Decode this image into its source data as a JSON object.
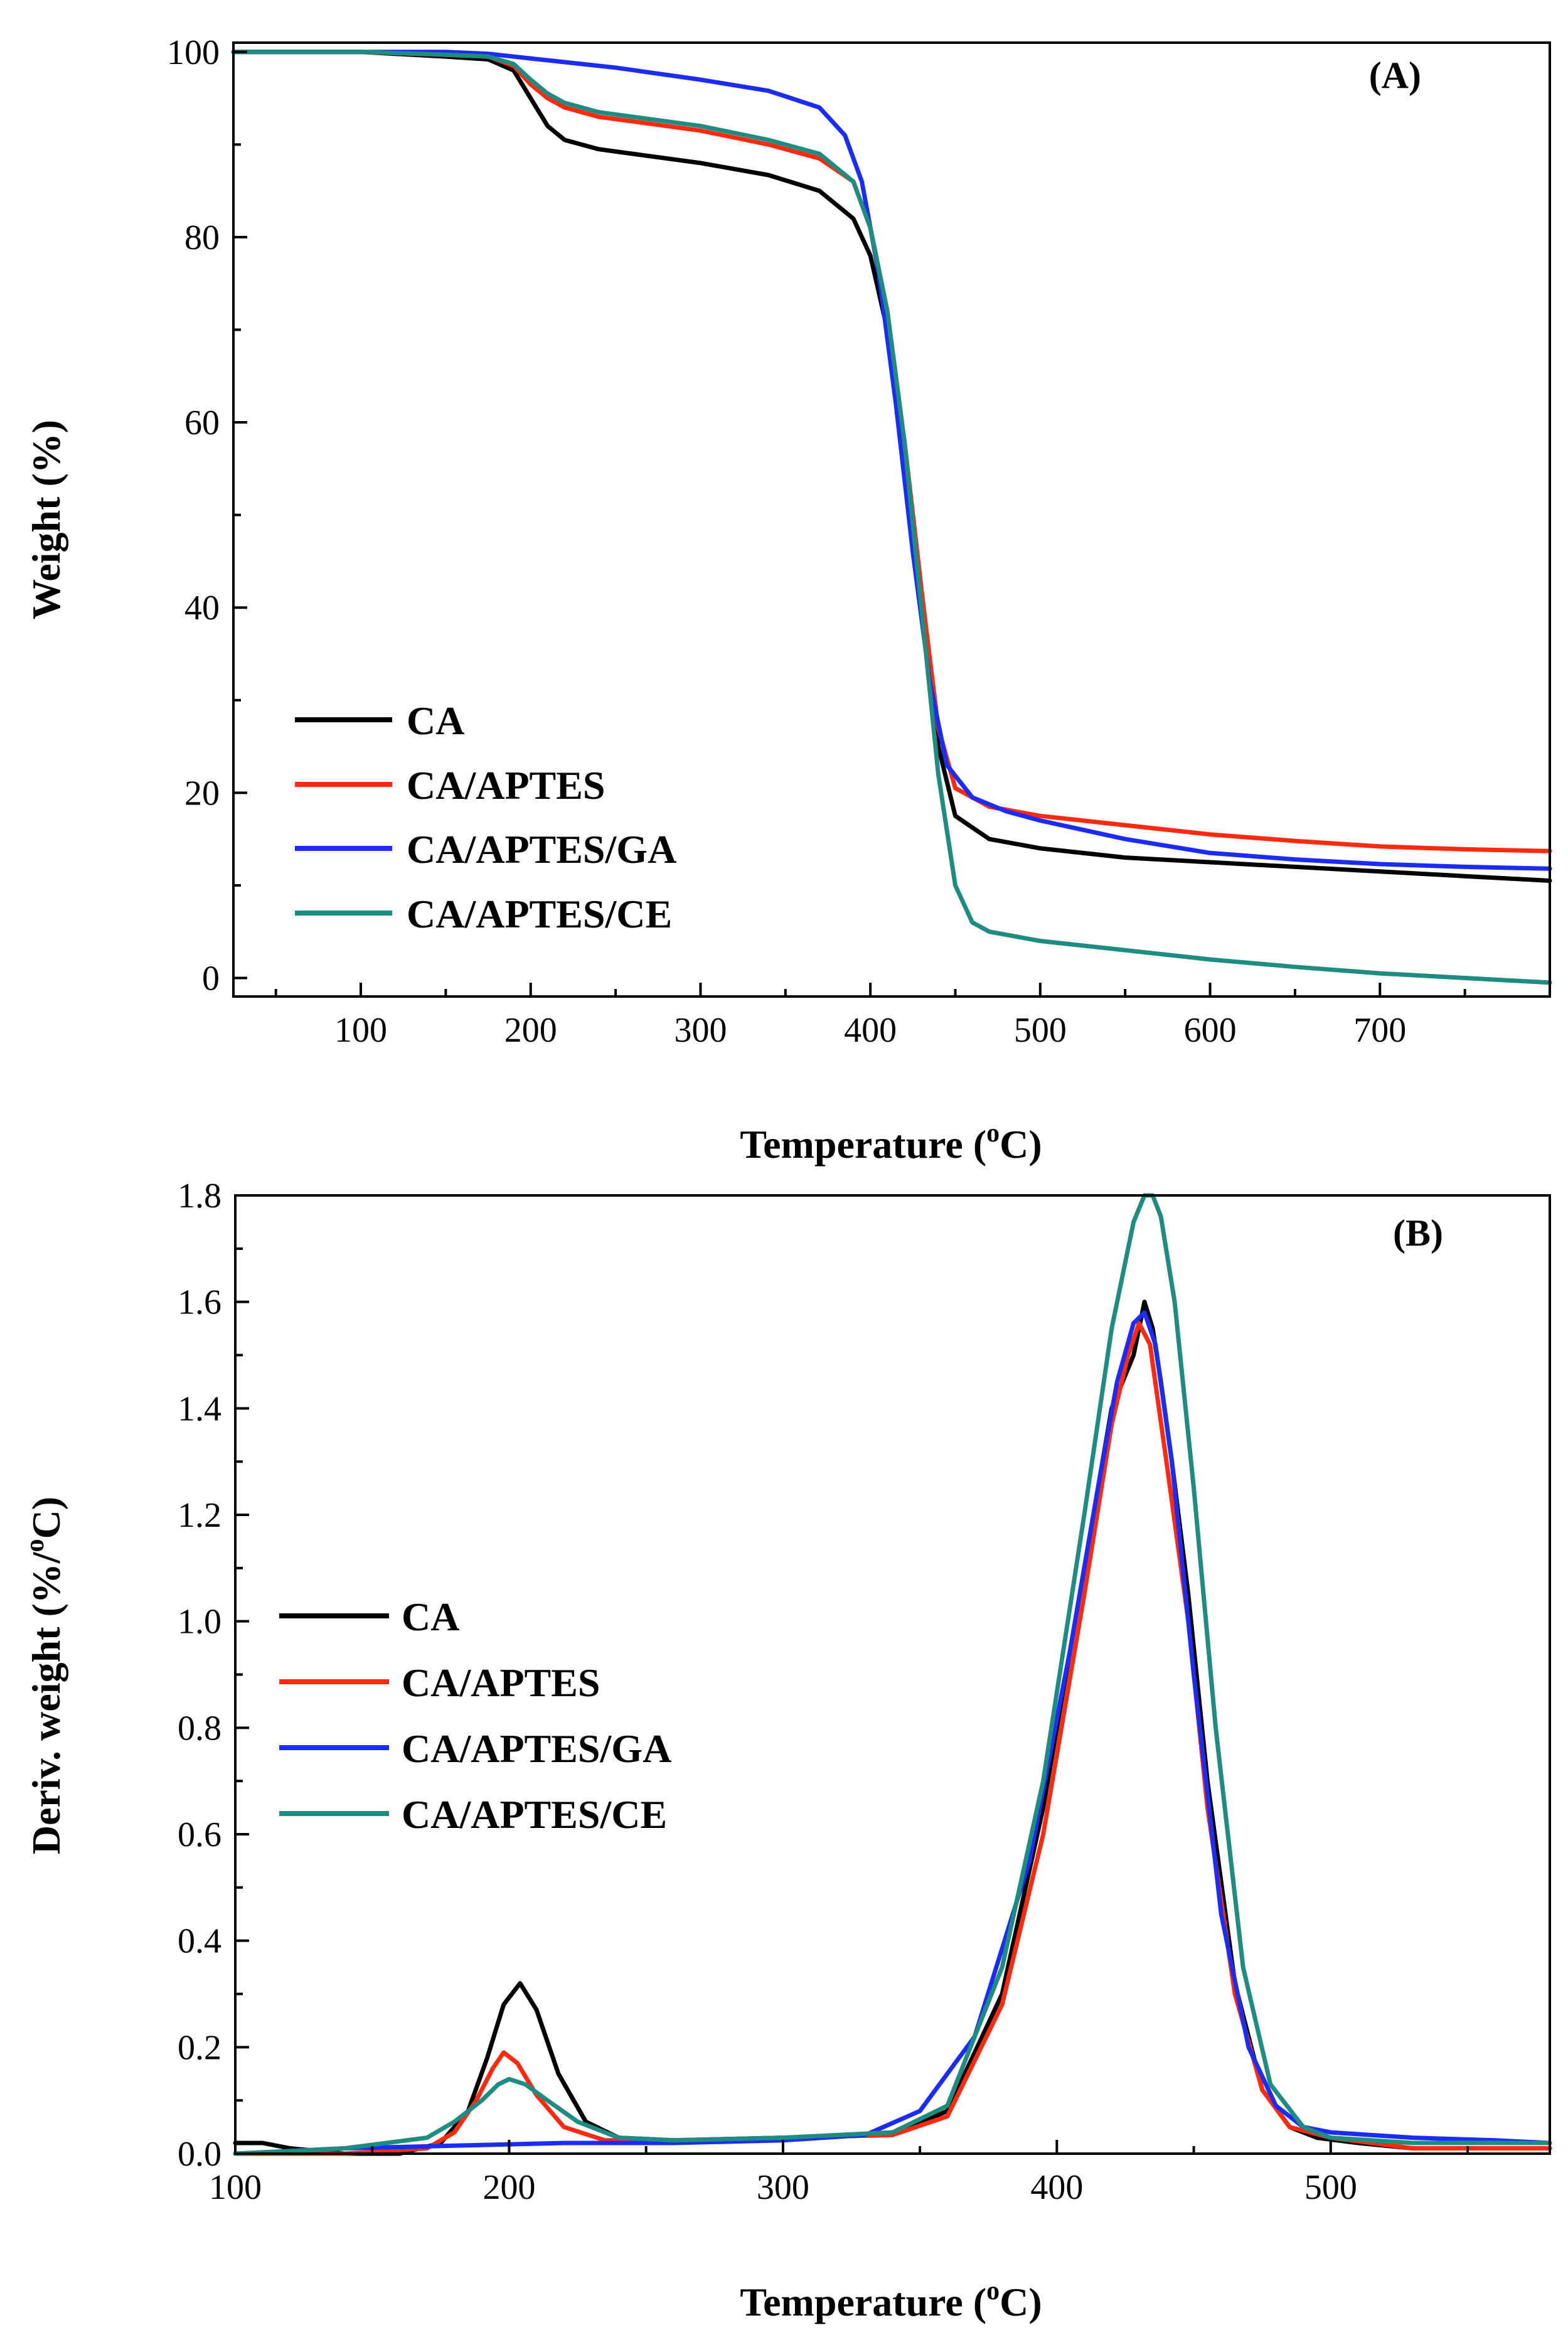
{
  "chart_data": [
    {
      "type": "line",
      "panel_label": "(A)",
      "title": "",
      "xlabel_main": "Temperature (",
      "xlabel_sup": "o",
      "xlabel_end": "C)",
      "ylabel": "Weight (%)",
      "xlim": [
        25,
        800
      ],
      "ylim": [
        -2,
        101
      ],
      "xticks": [
        100,
        200,
        300,
        400,
        500,
        600,
        700
      ],
      "yticks": [
        0,
        20,
        40,
        60,
        80,
        100
      ],
      "legend_position": "lower-left",
      "series": [
        {
          "name": "CA",
          "color": "#000000",
          "x": [
            25,
            100,
            150,
            175,
            190,
            200,
            210,
            220,
            240,
            260,
            300,
            340,
            370,
            390,
            400,
            410,
            420,
            430,
            440,
            450,
            470,
            500,
            550,
            600,
            650,
            700,
            750,
            800
          ],
          "y": [
            100,
            100,
            99.5,
            99.2,
            98,
            95,
            92,
            90.5,
            89.5,
            89,
            88,
            86.7,
            85,
            82,
            78,
            70,
            58,
            42,
            25,
            17.5,
            15,
            14,
            13,
            12.5,
            12,
            11.5,
            11,
            10.5
          ]
        },
        {
          "name": "CA/APTES",
          "color": "#ff2a0f",
          "x": [
            25,
            100,
            150,
            175,
            190,
            200,
            210,
            220,
            240,
            260,
            300,
            340,
            370,
            390,
            400,
            410,
            420,
            430,
            440,
            450,
            470,
            500,
            550,
            600,
            650,
            700,
            750,
            800
          ],
          "y": [
            100,
            100,
            99.7,
            99.5,
            98.5,
            96.5,
            95,
            94,
            93,
            92.5,
            91.5,
            90,
            88.5,
            86,
            81,
            72,
            58,
            42,
            27,
            20.5,
            18.5,
            17.5,
            16.5,
            15.5,
            14.8,
            14.2,
            13.9,
            13.7
          ]
        },
        {
          "name": "CA/APTES/GA",
          "color": "#1a2cf5",
          "x": [
            25,
            100,
            150,
            175,
            200,
            250,
            300,
            340,
            370,
            385,
            395,
            405,
            415,
            425,
            435,
            445,
            460,
            480,
            500,
            550,
            600,
            650,
            700,
            750,
            800
          ],
          "y": [
            100,
            100,
            100,
            99.8,
            99.3,
            98.3,
            97,
            95.8,
            94,
            91,
            86,
            76,
            62,
            46,
            32,
            23,
            19.5,
            18,
            17,
            15,
            13.5,
            12.8,
            12.3,
            12,
            11.8
          ]
        },
        {
          "name": "CA/APTES/CE",
          "color": "#1f8c82",
          "x": [
            25,
            100,
            150,
            175,
            190,
            200,
            210,
            220,
            240,
            260,
            300,
            340,
            370,
            390,
            400,
            410,
            420,
            430,
            440,
            450,
            460,
            470,
            500,
            550,
            600,
            650,
            700,
            750,
            800
          ],
          "y": [
            100,
            100,
            99.7,
            99.5,
            98.7,
            97,
            95.5,
            94.5,
            93.5,
            93,
            92,
            90.5,
            89,
            86,
            81,
            72,
            58,
            40,
            22,
            10,
            6,
            5,
            4,
            3,
            2,
            1.2,
            0.5,
            0,
            -0.5
          ]
        }
      ]
    },
    {
      "type": "line",
      "panel_label": "(B)",
      "title": "",
      "xlabel_main": "Temperature (",
      "xlabel_sup": "o",
      "xlabel_end": "C)",
      "ylabel_main": "Deriv. weight (%/",
      "ylabel_sup": "o",
      "ylabel_end": "C)",
      "xlim": [
        100,
        580
      ],
      "ylim": [
        0,
        1.8
      ],
      "xticks": [
        100,
        200,
        300,
        400,
        500
      ],
      "yticks": [
        0.0,
        0.2,
        0.4,
        0.6,
        0.8,
        1.0,
        1.2,
        1.4,
        1.6,
        1.8
      ],
      "ytick_labels": [
        "0.0",
        "0.2",
        "0.4",
        "0.6",
        "0.8",
        "1.0",
        "1.2",
        "1.4",
        "1.6",
        "1.8"
      ],
      "legend_position": "middle-left",
      "series": [
        {
          "name": "CA",
          "color": "#000000",
          "x": [
            100,
            110,
            120,
            140,
            160,
            175,
            185,
            192,
            198,
            204,
            210,
            218,
            228,
            240,
            260,
            300,
            340,
            360,
            380,
            395,
            410,
            420,
            428,
            432,
            435,
            438,
            442,
            448,
            455,
            465,
            475,
            485,
            495,
            510,
            530,
            560,
            580
          ],
          "y": [
            0.02,
            0.02,
            0.01,
            0.0,
            0.0,
            0.02,
            0.08,
            0.18,
            0.28,
            0.32,
            0.27,
            0.15,
            0.06,
            0.03,
            0.025,
            0.03,
            0.035,
            0.08,
            0.3,
            0.65,
            1.1,
            1.4,
            1.5,
            1.6,
            1.55,
            1.45,
            1.3,
            1.05,
            0.7,
            0.32,
            0.12,
            0.05,
            0.03,
            0.02,
            0.01,
            0.01,
            0.01
          ]
        },
        {
          "name": "CA/APTES",
          "color": "#ff2a0f",
          "x": [
            100,
            140,
            170,
            180,
            188,
            194,
            198,
            203,
            210,
            220,
            235,
            260,
            300,
            340,
            360,
            380,
            395,
            410,
            420,
            426,
            430,
            434,
            440,
            448,
            455,
            465,
            475,
            485,
            500,
            530,
            560,
            580
          ],
          "y": [
            0.0,
            0.0,
            0.01,
            0.04,
            0.1,
            0.16,
            0.19,
            0.17,
            0.11,
            0.05,
            0.025,
            0.025,
            0.03,
            0.035,
            0.07,
            0.28,
            0.6,
            1.05,
            1.37,
            1.5,
            1.56,
            1.52,
            1.3,
            1.0,
            0.65,
            0.3,
            0.12,
            0.05,
            0.03,
            0.01,
            0.01,
            0.01
          ]
        },
        {
          "name": "CA/APTES/GA",
          "color": "#1a2cf5",
          "x": [
            100,
            140,
            180,
            220,
            260,
            300,
            330,
            350,
            370,
            390,
            405,
            415,
            422,
            428,
            432,
            436,
            442,
            450,
            460,
            470,
            480,
            490,
            500,
            530,
            560,
            580
          ],
          "y": [
            0.0,
            0.01,
            0.015,
            0.02,
            0.02,
            0.025,
            0.035,
            0.08,
            0.22,
            0.55,
            0.95,
            1.25,
            1.45,
            1.56,
            1.58,
            1.52,
            1.3,
            0.9,
            0.45,
            0.2,
            0.09,
            0.05,
            0.04,
            0.03,
            0.025,
            0.02
          ]
        },
        {
          "name": "CA/APTES/CE",
          "color": "#1f8c82",
          "x": [
            100,
            140,
            170,
            180,
            190,
            196,
            200,
            206,
            214,
            225,
            240,
            260,
            300,
            340,
            360,
            380,
            395,
            410,
            420,
            428,
            432,
            435,
            438,
            443,
            450,
            458,
            468,
            478,
            490,
            500,
            530,
            560,
            580
          ],
          "y": [
            0.0,
            0.01,
            0.03,
            0.06,
            0.1,
            0.13,
            0.14,
            0.13,
            0.1,
            0.06,
            0.03,
            0.025,
            0.03,
            0.04,
            0.09,
            0.35,
            0.7,
            1.2,
            1.55,
            1.75,
            1.8,
            1.8,
            1.76,
            1.6,
            1.25,
            0.8,
            0.35,
            0.13,
            0.05,
            0.03,
            0.02,
            0.02,
            0.02
          ]
        }
      ]
    }
  ]
}
